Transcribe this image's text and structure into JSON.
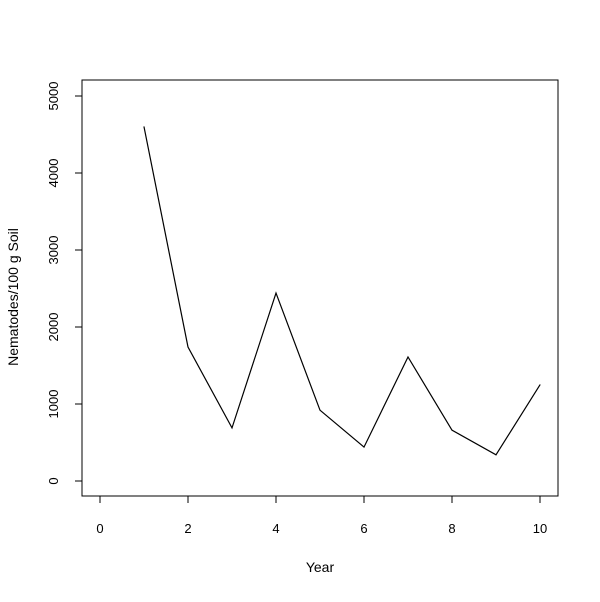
{
  "chart_data": {
    "type": "line",
    "title": "",
    "xlabel": "Year",
    "ylabel": "Nematodes/100 g Soil",
    "x": [
      1,
      2,
      3,
      4,
      5,
      6,
      7,
      8,
      9,
      10
    ],
    "series": [
      {
        "values": [
          4600,
          1740,
          690,
          2440,
          920,
          440,
          1610,
          660,
          340,
          1250
        ]
      }
    ],
    "xlim": [
      0,
      10
    ],
    "ylim": [
      0,
      5000
    ],
    "xticks": [
      0,
      2,
      4,
      6,
      8,
      10
    ],
    "yticks": [
      0,
      1000,
      2000,
      3000,
      4000,
      5000
    ],
    "grid": false,
    "colors": {
      "line": "#000000",
      "frame": "#000000"
    }
  }
}
